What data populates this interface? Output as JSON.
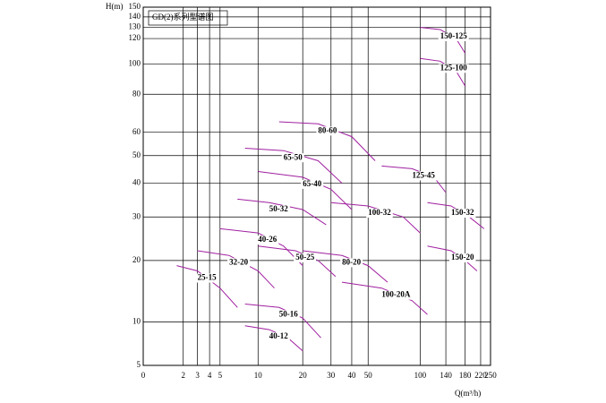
{
  "chart_data": {
    "type": "line",
    "title": "GD(2)系列型谱图",
    "y_label": "H(m)",
    "x_label": "Q(m³/h)",
    "log_scale": true,
    "grid": true,
    "color": "#a020a0",
    "xlim": [
      0,
      250
    ],
    "xticks": [
      0,
      2,
      3,
      4,
      5,
      10,
      20,
      30,
      40,
      50,
      100,
      140,
      180,
      220,
      250
    ],
    "ylim": [
      5,
      150
    ],
    "yticks": [
      5,
      10,
      20,
      30,
      40,
      50,
      60,
      80,
      100,
      120,
      130,
      140,
      150
    ],
    "series": [
      {
        "name": "25-15",
        "x": [
          1.6,
          3,
          5,
          7
        ],
        "values": [
          19,
          18,
          15,
          12
        ]
      },
      {
        "name": "32-20",
        "x": [
          3,
          6,
          10,
          13
        ],
        "values": [
          22,
          21,
          18,
          15
        ]
      },
      {
        "name": "40-26",
        "x": [
          5,
          10,
          15,
          20
        ],
        "values": [
          27,
          26,
          23,
          19
        ]
      },
      {
        "name": "40-12",
        "x": [
          8,
          12,
          16,
          20
        ],
        "values": [
          9.5,
          9,
          8,
          6.5
        ]
      },
      {
        "name": "50-16",
        "x": [
          8,
          14,
          20,
          26
        ],
        "values": [
          12.5,
          12,
          10.5,
          8
        ]
      },
      {
        "name": "50-25",
        "x": [
          10,
          18,
          25,
          32
        ],
        "values": [
          23,
          22,
          20,
          17
        ]
      },
      {
        "name": "50-32",
        "x": [
          7,
          12,
          20,
          28
        ],
        "values": [
          35,
          34,
          32,
          28
        ]
      },
      {
        "name": "65-40",
        "x": [
          10,
          20,
          30,
          40
        ],
        "values": [
          44,
          42,
          38,
          32
        ]
      },
      {
        "name": "65-50",
        "x": [
          8,
          15,
          25,
          35
        ],
        "values": [
          53,
          52,
          48,
          40
        ]
      },
      {
        "name": "80-60",
        "x": [
          14,
          25,
          40,
          55
        ],
        "values": [
          65,
          64,
          58,
          48
        ]
      },
      {
        "name": "80-20",
        "x": [
          20,
          35,
          50,
          65
        ],
        "values": [
          22,
          21,
          19,
          16
        ]
      },
      {
        "name": "100-32",
        "x": [
          30,
          50,
          80,
          100
        ],
        "values": [
          34,
          33,
          30,
          26
        ]
      },
      {
        "name": "100-20A",
        "x": [
          35,
          60,
          90,
          110
        ],
        "values": [
          16,
          15,
          13,
          11
        ]
      },
      {
        "name": "125-45",
        "x": [
          60,
          90,
          120,
          140
        ],
        "values": [
          46,
          45,
          42,
          37
        ]
      },
      {
        "name": "150-32",
        "x": [
          110,
          150,
          190,
          230
        ],
        "values": [
          34,
          33,
          30,
          27
        ]
      },
      {
        "name": "125-100",
        "x": [
          100,
          130,
          160,
          180
        ],
        "values": [
          104,
          102,
          95,
          85
        ]
      },
      {
        "name": "150-125",
        "x": [
          100,
          130,
          160,
          180
        ],
        "values": [
          130,
          128,
          120,
          108
        ]
      },
      {
        "name": "150-20",
        "x": [
          110,
          150,
          180,
          210
        ],
        "values": [
          23,
          22,
          20,
          18
        ]
      }
    ]
  }
}
